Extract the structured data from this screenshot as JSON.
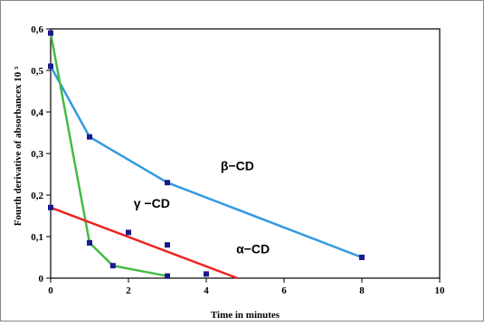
{
  "chart_data": {
    "type": "line",
    "xlabel": "Time in minutes",
    "ylabel": "Fourth derivative of absorbancex 10 ³",
    "xlim": [
      0,
      10
    ],
    "ylim": [
      0,
      0.6
    ],
    "x_ticks": [
      "0",
      "2",
      "4",
      "6",
      "8",
      "10"
    ],
    "y_ticks": [
      "0",
      "0,1",
      "0,2",
      "0,3",
      "0,4",
      "0,5",
      "0,6"
    ],
    "grid": false,
    "series": [
      {
        "name": "β−CD",
        "color": "#3399e0",
        "points": [
          {
            "x": 0,
            "y": 0.51
          },
          {
            "x": 1,
            "y": 0.34
          },
          {
            "x": 3,
            "y": 0.23
          },
          {
            "x": 8,
            "y": 0.05
          }
        ]
      },
      {
        "name": "γ −CD",
        "color": "#44bb44",
        "points": [
          {
            "x": 0,
            "y": 0.59
          },
          {
            "x": 1,
            "y": 0.085
          },
          {
            "x": 1.6,
            "y": 0.03
          },
          {
            "x": 3,
            "y": 0.005
          }
        ]
      },
      {
        "name": "α−CD",
        "color": "#ee2222",
        "line": [
          {
            "x": 0,
            "y": 0.17
          },
          {
            "x": 4.8,
            "y": 0.0
          }
        ],
        "points": [
          {
            "x": 0,
            "y": 0.17
          },
          {
            "x": 1,
            "y": 0.085
          },
          {
            "x": 2,
            "y": 0.11
          },
          {
            "x": 3,
            "y": 0.08
          },
          {
            "x": 4,
            "y": 0.01
          }
        ]
      }
    ]
  }
}
